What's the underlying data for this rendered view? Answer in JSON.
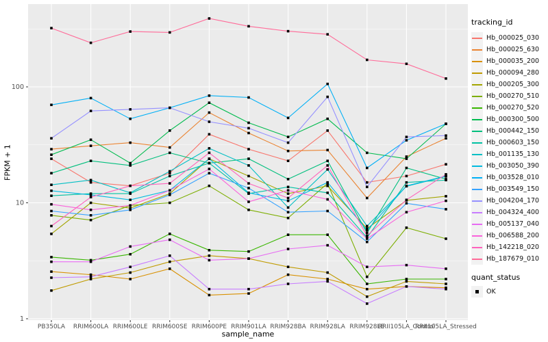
{
  "chart_data": {
    "type": "line",
    "title": "",
    "xlabel": "sample_name",
    "ylabel": "FPKM + 1",
    "y_scale": "log10",
    "y_ticks": [
      1,
      10,
      100
    ],
    "y_minor_ticks": [
      3.1623,
      31.623,
      316.23
    ],
    "ylim": [
      1,
      500
    ],
    "legend_title": "tracking_id",
    "legend_position": "right",
    "grid": "on",
    "panel_bg": "#EBEBEB",
    "grid_color": "#FFFFFF",
    "point_color": "#000000",
    "tick_label_color": "#4D4D4D",
    "categories": [
      "PB350LA",
      "RRIM600LA",
      "RRIM600LE",
      "RRIM600SE",
      "RRIM600PE",
      "RRIM901LA",
      "RRIM928BA",
      "RRIM928LA",
      "RRIM928LE",
      "RRII105LA_Control",
      "RRII105LA_Stressed"
    ],
    "series": [
      {
        "name": "Hb_000025_030",
        "color": "#F8766D",
        "values": [
          24,
          15,
          14,
          18,
          39,
          29,
          23,
          42,
          15,
          17,
          21.5
        ]
      },
      {
        "name": "Hb_000025_630",
        "color": "#EA8331",
        "values": [
          29,
          31,
          33,
          30,
          60,
          40,
          28,
          28.5,
          11,
          25,
          36
        ]
      },
      {
        "name": "Hb_000035_200",
        "color": "#D89000",
        "values": [
          2.55,
          2.4,
          2.2,
          2.7,
          1.6,
          1.65,
          2.4,
          2.2,
          1.8,
          1.9,
          1.85
        ]
      },
      {
        "name": "Hb_000094_280",
        "color": "#C09B00",
        "values": [
          1.75,
          2.2,
          2.5,
          3.1,
          3.5,
          3.3,
          2.8,
          2.5,
          1.55,
          2.1,
          2.0
        ]
      },
      {
        "name": "Hb_000205_300",
        "color": "#A3A500",
        "values": [
          5.4,
          10,
          9,
          12,
          24,
          17,
          12,
          14,
          6,
          10.5,
          11.4
        ]
      },
      {
        "name": "Hb_000270_510",
        "color": "#7CAE00",
        "values": [
          7.8,
          7.1,
          9.5,
          10,
          14,
          8.7,
          7.4,
          14.7,
          2.3,
          6.1,
          4.9
        ]
      },
      {
        "name": "Hb_000270_520",
        "color": "#39B600",
        "values": [
          3.4,
          3.2,
          3.6,
          5.4,
          3.9,
          3.8,
          5.3,
          5.3,
          2.0,
          2.2,
          2.2
        ]
      },
      {
        "name": "Hb_000300_500",
        "color": "#00BB4E",
        "values": [
          26,
          35,
          22,
          42,
          73,
          49,
          37,
          53,
          27,
          24,
          48
        ]
      },
      {
        "name": "Hb_000442_150",
        "color": "#00BF7D",
        "values": [
          18,
          23,
          21,
          27,
          22,
          24,
          16,
          23,
          5.5,
          20,
          16
        ]
      },
      {
        "name": "Hb_000603_150",
        "color": "#00C1A3",
        "values": [
          11.5,
          12,
          12,
          17,
          22,
          12,
          13.7,
          12.2,
          5.0,
          15,
          15.7
        ]
      },
      {
        "name": "Hb_001135_130",
        "color": "#00BFC4",
        "values": [
          14.3,
          15.7,
          12.2,
          18.7,
          29.5,
          21,
          9.1,
          19.4,
          6.3,
          13.9,
          16.9
        ]
      },
      {
        "name": "Hb_003050_390",
        "color": "#00BAE0",
        "values": [
          12.7,
          11.7,
          10.6,
          12.8,
          24,
          12.2,
          10.4,
          15,
          5.8,
          14,
          17
        ]
      },
      {
        "name": "Hb_003528_010",
        "color": "#00B0F6",
        "values": [
          70,
          80,
          53,
          66,
          84,
          81,
          54,
          106,
          20,
          34.6,
          48
        ]
      },
      {
        "name": "Hb_003549_150",
        "color": "#35A2FF",
        "values": [
          8.5,
          7.8,
          8.7,
          11.7,
          18,
          13.4,
          8.3,
          8.5,
          4.6,
          9.9,
          8.8
        ]
      },
      {
        "name": "Hb_004204_170",
        "color": "#9590FF",
        "values": [
          36,
          62,
          64,
          66,
          50,
          44,
          33,
          82,
          13.7,
          37,
          38
        ]
      },
      {
        "name": "Hb_004324_400",
        "color": "#C77CFF",
        "values": [
          2.26,
          2.3,
          2.8,
          3.5,
          1.8,
          1.8,
          2.0,
          2.1,
          1.35,
          1.9,
          1.8
        ]
      },
      {
        "name": "Hb_005137_040",
        "color": "#E76BF3",
        "values": [
          3.1,
          3.1,
          4.2,
          4.8,
          3.2,
          3.3,
          4.0,
          4.3,
          2.8,
          2.9,
          2.7
        ]
      },
      {
        "name": "Hb_006588_200",
        "color": "#FA62DB",
        "values": [
          9.7,
          8.7,
          9.5,
          12.8,
          19.6,
          10.2,
          12.8,
          10.7,
          4.9,
          8.3,
          10.4
        ]
      },
      {
        "name": "Hb_142218_020",
        "color": "#FF62BC",
        "values": [
          6.3,
          11.2,
          14,
          14.7,
          27,
          14.7,
          11,
          21,
          5.2,
          10.6,
          17.6
        ]
      },
      {
        "name": "Hb_187679_010",
        "color": "#FF6A98",
        "values": [
          321,
          240,
          300,
          295,
          389,
          333,
          302,
          284,
          171,
          158,
          118
        ]
      }
    ],
    "quant_legend": {
      "title": "quant_status",
      "items": [
        {
          "label": "OK",
          "shape": "black-square"
        }
      ]
    }
  }
}
